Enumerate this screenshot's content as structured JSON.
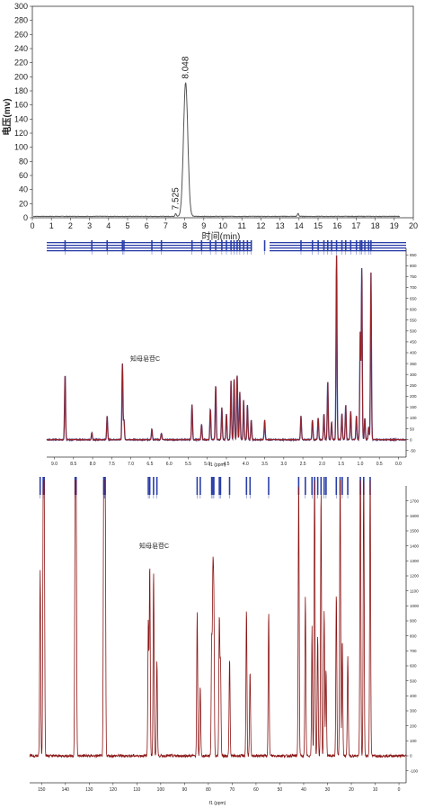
{
  "chart_data": [
    {
      "type": "line",
      "ylabel": "电压(mv)",
      "xlabel": "时间(min)",
      "xlim": [
        0,
        20
      ],
      "ylim": [
        0,
        300
      ],
      "xticks": [
        "0",
        "1",
        "2",
        "3",
        "4",
        "5",
        "6",
        "7",
        "8",
        "9",
        "10",
        "11",
        "12",
        "13",
        "14",
        "15",
        "16",
        "17",
        "18",
        "19",
        "20"
      ],
      "yticks": [
        "0",
        "20",
        "40",
        "60",
        "80",
        "100",
        "120",
        "140",
        "160",
        "180",
        "200",
        "220",
        "240",
        "260",
        "280",
        "300"
      ],
      "peaks": [
        {
          "label": "7.525",
          "x": 7.525,
          "y": 4
        },
        {
          "label": "8.048",
          "x": 8.048,
          "y": 190
        }
      ],
      "minor_peaks": [
        {
          "x": 13.95,
          "y": 4
        }
      ],
      "grid": false
    },
    {
      "type": "line",
      "title": "知母皂苷C",
      "xlabel": "f1 (ppm)",
      "xlim": [
        9.2,
        -0.2
      ],
      "ylim": [
        -80,
        880
      ],
      "xticks": [
        "9.0",
        "8.5",
        "8.0",
        "7.5",
        "7.0",
        "6.5",
        "6.0",
        "5.5",
        "5.0",
        "4.5",
        "4.0",
        "3.5",
        "3.0",
        "2.5",
        "2.0",
        "1.5",
        "1.0",
        "0.5",
        "0.0"
      ],
      "yticks": [
        "-50",
        "0",
        "50",
        "100",
        "150",
        "200",
        "250",
        "300",
        "350",
        "400",
        "450",
        "500",
        "550",
        "600",
        "650",
        "700",
        "750",
        "800",
        "850"
      ],
      "peaks": [
        {
          "x": 8.72,
          "y": 300
        },
        {
          "x": 8.02,
          "y": 30
        },
        {
          "x": 7.62,
          "y": 110
        },
        {
          "x": 7.22,
          "y": 350
        },
        {
          "x": 7.18,
          "y": 90
        },
        {
          "x": 6.45,
          "y": 50
        },
        {
          "x": 6.2,
          "y": 30
        },
        {
          "x": 5.4,
          "y": 160
        },
        {
          "x": 5.15,
          "y": 70
        },
        {
          "x": 4.92,
          "y": 140
        },
        {
          "x": 4.78,
          "y": 250
        },
        {
          "x": 4.62,
          "y": 150
        },
        {
          "x": 4.5,
          "y": 120
        },
        {
          "x": 4.38,
          "y": 270
        },
        {
          "x": 4.3,
          "y": 280
        },
        {
          "x": 4.22,
          "y": 300
        },
        {
          "x": 4.15,
          "y": 220
        },
        {
          "x": 4.05,
          "y": 180
        },
        {
          "x": 3.95,
          "y": 160
        },
        {
          "x": 3.85,
          "y": 90
        },
        {
          "x": 3.5,
          "y": 90
        },
        {
          "x": 2.55,
          "y": 110
        },
        {
          "x": 2.25,
          "y": 90
        },
        {
          "x": 2.1,
          "y": 100
        },
        {
          "x": 1.95,
          "y": 120
        },
        {
          "x": 1.85,
          "y": 270
        },
        {
          "x": 1.75,
          "y": 80
        },
        {
          "x": 1.62,
          "y": 850
        },
        {
          "x": 1.48,
          "y": 120
        },
        {
          "x": 1.38,
          "y": 160
        },
        {
          "x": 1.25,
          "y": 130
        },
        {
          "x": 1.1,
          "y": 110
        },
        {
          "x": 1.0,
          "y": 500
        },
        {
          "x": 0.96,
          "y": 790
        },
        {
          "x": 0.88,
          "y": 100
        },
        {
          "x": 0.78,
          "y": 60
        },
        {
          "x": 0.72,
          "y": 770
        }
      ],
      "grid": false
    },
    {
      "type": "line",
      "title": "知母皂苷C",
      "xlabel": "f1 (ppm)",
      "xlim": [
        155,
        -3
      ],
      "ylim": [
        -180,
        1800
      ],
      "xticks": [
        "150",
        "140",
        "130",
        "120",
        "110",
        "100",
        "90",
        "80",
        "70",
        "60",
        "50",
        "40",
        "30",
        "20",
        "10",
        "0"
      ],
      "yticks": [
        "-100",
        "0",
        "100",
        "200",
        "300",
        "400",
        "500",
        "600",
        "700",
        "800",
        "900",
        "1000",
        "1100",
        "1200",
        "1300",
        "1400",
        "1500",
        "1600",
        "1700"
      ],
      "peaks": [
        {
          "x": 150.6,
          "y": 1240
        },
        {
          "x": 149.3,
          "y": 1700
        },
        {
          "x": 148.9,
          "y": 1700
        },
        {
          "x": 135.9,
          "y": 1700
        },
        {
          "x": 135.5,
          "y": 1700
        },
        {
          "x": 123.9,
          "y": 1700
        },
        {
          "x": 123.6,
          "y": 1700
        },
        {
          "x": 123.3,
          "y": 1700
        },
        {
          "x": 105.2,
          "y": 900
        },
        {
          "x": 104.6,
          "y": 1280
        },
        {
          "x": 103.0,
          "y": 1230
        },
        {
          "x": 101.6,
          "y": 640
        },
        {
          "x": 84.7,
          "y": 950
        },
        {
          "x": 83.4,
          "y": 470
        },
        {
          "x": 78.6,
          "y": 760
        },
        {
          "x": 78.1,
          "y": 1140
        },
        {
          "x": 77.7,
          "y": 1000
        },
        {
          "x": 75.4,
          "y": 920
        },
        {
          "x": 74.9,
          "y": 610
        },
        {
          "x": 71.1,
          "y": 650
        },
        {
          "x": 64.0,
          "y": 980
        },
        {
          "x": 62.5,
          "y": 560
        },
        {
          "x": 54.7,
          "y": 960
        },
        {
          "x": 42.1,
          "y": 1830
        },
        {
          "x": 39.3,
          "y": 1060
        },
        {
          "x": 36.5,
          "y": 860
        },
        {
          "x": 35.4,
          "y": 1980
        },
        {
          "x": 34.1,
          "y": 800
        },
        {
          "x": 32.7,
          "y": 1760
        },
        {
          "x": 31.4,
          "y": 980
        },
        {
          "x": 30.6,
          "y": 580
        },
        {
          "x": 26.3,
          "y": 1090
        },
        {
          "x": 24.7,
          "y": 1950
        },
        {
          "x": 23.8,
          "y": 780
        },
        {
          "x": 21.5,
          "y": 670
        },
        {
          "x": 16.2,
          "y": 2100
        },
        {
          "x": 14.8,
          "y": 1950
        },
        {
          "x": 12.1,
          "y": 1930
        }
      ],
      "grid": false
    }
  ]
}
